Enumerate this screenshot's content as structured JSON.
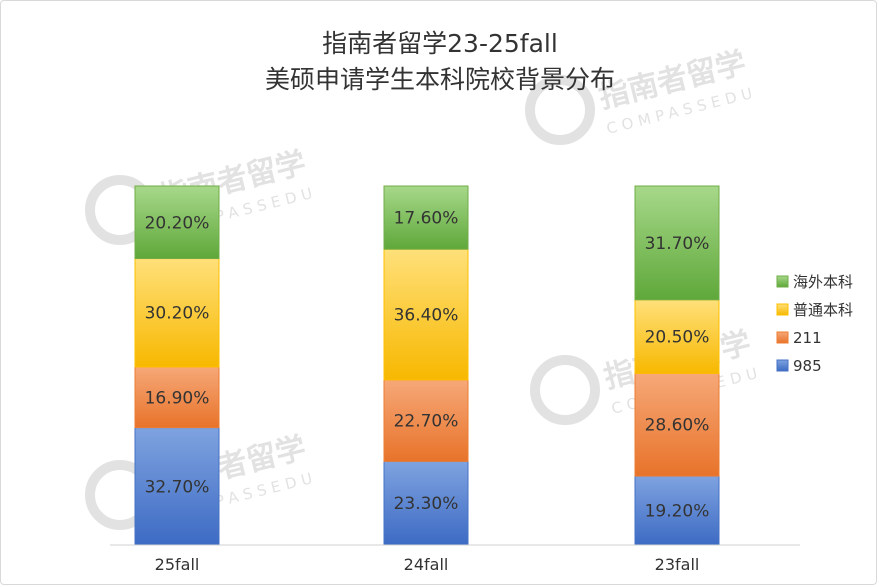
{
  "chart_data": {
    "type": "bar",
    "stacked": true,
    "title": "指南者留学23-25fall",
    "subtitle": "美硕申请学生本科院校背景分布",
    "categories": [
      "25fall",
      "24fall",
      "23fall"
    ],
    "series": [
      {
        "name": "985",
        "color": "#4472c4",
        "values": [
          32.7,
          23.3,
          19.2
        ],
        "labels": [
          "32.70%",
          "23.30%",
          "19.20%"
        ]
      },
      {
        "name": "211",
        "color": "#ed7d31",
        "values": [
          16.9,
          22.7,
          28.6
        ],
        "labels": [
          "16.90%",
          "22.70%",
          "28.60%"
        ]
      },
      {
        "name": "普通本科",
        "color": "#ffc000",
        "values": [
          30.2,
          36.4,
          20.5
        ],
        "labels": [
          "30.20%",
          "36.40%",
          "20.50%"
        ]
      },
      {
        "name": "海外本科",
        "color": "#70ad47",
        "values": [
          20.2,
          17.6,
          31.7
        ],
        "labels": [
          "20.20%",
          "17.60%",
          "31.70%"
        ]
      }
    ],
    "legend_position": "right",
    "legend_order": [
      "海外本科",
      "普通本科",
      "211",
      "985"
    ],
    "grid": false,
    "ylim": [
      0,
      100
    ]
  },
  "watermark": {
    "brand": "指南者留学",
    "latin": "COMPASSEDU"
  }
}
